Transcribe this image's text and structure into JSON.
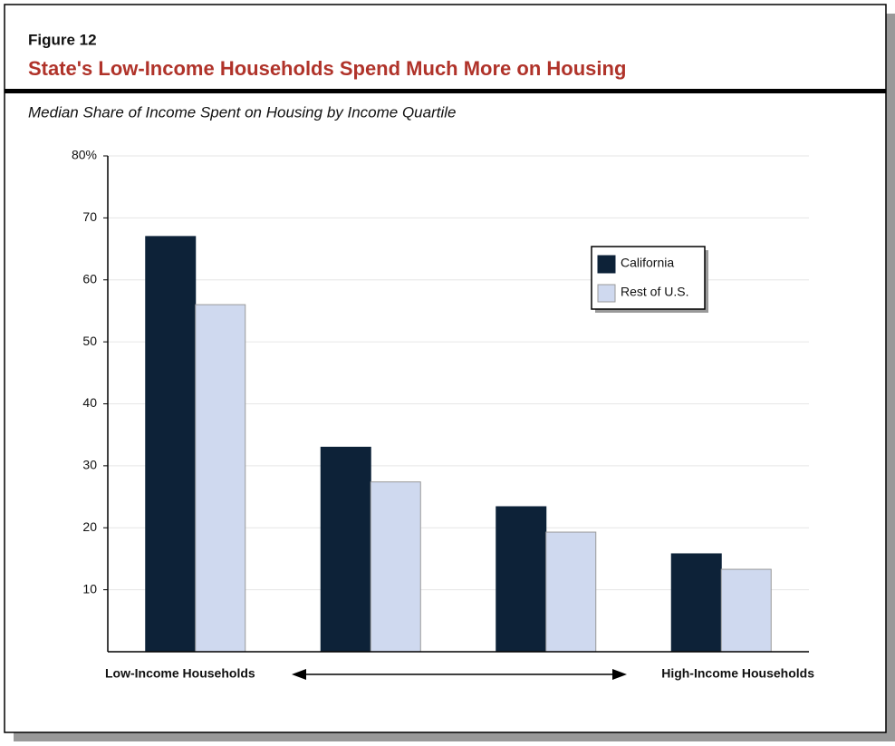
{
  "chart_data": {
    "type": "bar",
    "figure_label": "Figure 12",
    "title": "State's Low-Income Households Spend Much More on Housing",
    "subtitle": "Median Share of Income Spent on Housing by Income Quartile",
    "categories": [
      null,
      null,
      null,
      null
    ],
    "series": [
      {
        "name": "California",
        "color": "#0d2238",
        "values": [
          67,
          33,
          23.4,
          15.8
        ]
      },
      {
        "name": "Rest of U.S.",
        "color": "#cfd9ef",
        "values": [
          56,
          27.4,
          19.3,
          13.3
        ]
      }
    ],
    "ylim": [
      0,
      80
    ],
    "yticks": [
      10,
      20,
      30,
      40,
      50,
      60,
      70,
      {
        "value": 80,
        "label": "80%"
      }
    ],
    "grid": true,
    "legend": "upper-right",
    "x_axis_left_label": "Low-Income Households",
    "x_axis_right_label": "High-Income Households"
  }
}
